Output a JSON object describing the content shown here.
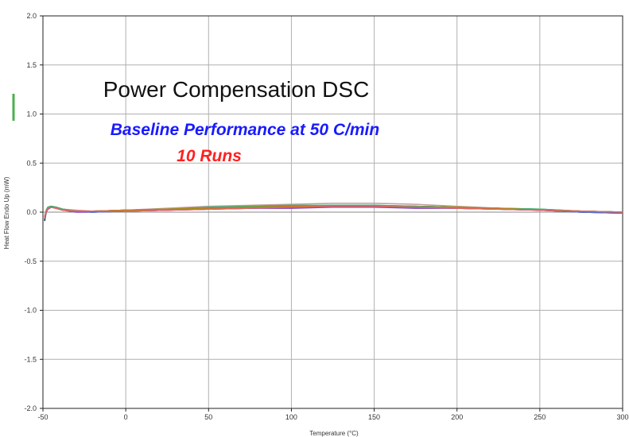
{
  "chart_data": {
    "type": "line",
    "title": "Power Compensation DSC",
    "subtitle": "Baseline Performance at 50 C/min",
    "annotation": "10 Runs",
    "xlabel": "Temperature (°C)",
    "ylabel": "Heat Flow Endo Up (mW)",
    "xlim": [
      -50,
      300
    ],
    "ylim": [
      -2.0,
      2.0
    ],
    "x_ticks": [
      -50,
      0,
      50,
      100,
      150,
      200,
      250,
      300
    ],
    "x_tick_labels": [
      "-50",
      "0",
      "50",
      "100",
      "150",
      "200",
      "250",
      "300"
    ],
    "y_ticks": [
      2.0,
      1.5,
      1.0,
      0.5,
      0.0,
      -0.5,
      -1.0,
      -1.5,
      -2.0
    ],
    "y_tick_labels": [
      "2.0",
      "1.5",
      "1.0",
      "0.5",
      "0.0",
      "-0.5",
      "-1.0",
      "-1.5",
      "-2.0"
    ],
    "grid": true,
    "x": [
      -49,
      -48,
      -47,
      -45,
      -42,
      -38,
      -30,
      -20,
      0,
      25,
      50,
      75,
      100,
      125,
      150,
      175,
      200,
      225,
      250,
      275,
      300
    ],
    "series": [
      {
        "color": "#2e8b57",
        "values": [
          -0.05,
          0.02,
          0.05,
          0.06,
          0.05,
          0.03,
          0.01,
          0.01,
          0.02,
          0.03,
          0.04,
          0.05,
          0.06,
          0.07,
          0.07,
          0.06,
          0.05,
          0.04,
          0.03,
          0.01,
          0.0
        ]
      },
      {
        "color": "#1f3fbf",
        "values": [
          -0.08,
          0.0,
          0.04,
          0.05,
          0.04,
          0.02,
          0.01,
          0.0,
          0.01,
          0.02,
          0.03,
          0.04,
          0.05,
          0.05,
          0.05,
          0.05,
          0.04,
          0.03,
          0.02,
          0.0,
          -0.01
        ]
      },
      {
        "color": "#d13a3a",
        "values": [
          -0.06,
          0.01,
          0.04,
          0.05,
          0.04,
          0.02,
          0.01,
          0.01,
          0.01,
          0.03,
          0.04,
          0.05,
          0.06,
          0.06,
          0.06,
          0.05,
          0.05,
          0.04,
          0.02,
          0.01,
          0.0
        ]
      },
      {
        "color": "#8a3fbf",
        "values": [
          -0.07,
          0.0,
          0.03,
          0.05,
          0.04,
          0.02,
          0.0,
          0.0,
          0.01,
          0.02,
          0.03,
          0.04,
          0.04,
          0.05,
          0.05,
          0.04,
          0.04,
          0.03,
          0.02,
          0.0,
          -0.01
        ]
      },
      {
        "color": "#222222",
        "values": [
          -0.09,
          0.01,
          0.05,
          0.06,
          0.05,
          0.03,
          0.01,
          0.01,
          0.02,
          0.03,
          0.04,
          0.05,
          0.06,
          0.06,
          0.06,
          0.06,
          0.05,
          0.04,
          0.02,
          0.01,
          0.0
        ]
      },
      {
        "color": "#c49a9a",
        "values": [
          -0.04,
          0.02,
          0.04,
          0.05,
          0.04,
          0.03,
          0.02,
          0.01,
          0.02,
          0.04,
          0.06,
          0.07,
          0.08,
          0.09,
          0.09,
          0.08,
          0.06,
          0.04,
          0.02,
          0.01,
          0.0
        ]
      },
      {
        "color": "#3cb371",
        "values": [
          -0.05,
          0.02,
          0.05,
          0.06,
          0.05,
          0.03,
          0.01,
          0.01,
          0.02,
          0.03,
          0.05,
          0.06,
          0.07,
          0.07,
          0.07,
          0.06,
          0.05,
          0.04,
          0.03,
          0.01,
          0.0
        ]
      },
      {
        "color": "#4a6fd6",
        "values": [
          -0.07,
          0.01,
          0.04,
          0.05,
          0.04,
          0.02,
          0.01,
          0.0,
          0.01,
          0.02,
          0.04,
          0.05,
          0.05,
          0.06,
          0.06,
          0.05,
          0.04,
          0.03,
          0.02,
          0.0,
          -0.01
        ]
      },
      {
        "color": "#b8860b",
        "values": [
          -0.06,
          0.01,
          0.04,
          0.05,
          0.04,
          0.02,
          0.01,
          0.01,
          0.02,
          0.03,
          0.04,
          0.05,
          0.06,
          0.06,
          0.06,
          0.05,
          0.05,
          0.04,
          0.02,
          0.01,
          0.0
        ]
      },
      {
        "color": "#e06666",
        "values": [
          -0.05,
          0.01,
          0.04,
          0.05,
          0.04,
          0.02,
          0.01,
          0.01,
          0.01,
          0.02,
          0.03,
          0.04,
          0.05,
          0.06,
          0.06,
          0.05,
          0.04,
          0.03,
          0.02,
          0.01,
          0.0
        ]
      }
    ],
    "colors": {
      "title": "#111111",
      "subtitle": "#1a1aff",
      "annotation": "#ff2020",
      "grid": "#b0b0b0",
      "axis": "#222222"
    }
  }
}
